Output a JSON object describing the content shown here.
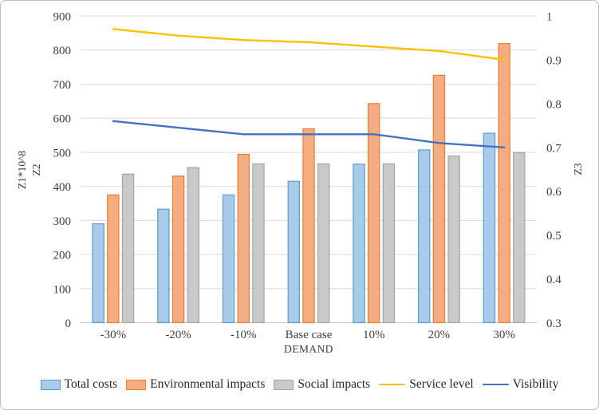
{
  "chart_data": {
    "type": "bar-line-combo",
    "categories": [
      "-30%",
      "-20%",
      "-10%",
      "Base case",
      "10%",
      "20%",
      "30%"
    ],
    "bar_series": [
      {
        "name": "Total costs",
        "values": [
          290,
          333,
          375,
          415,
          465,
          507,
          556
        ],
        "fill": "#A8CBE9",
        "border": "#5B9BD5"
      },
      {
        "name": "Environmental impacts",
        "values": [
          375,
          430,
          494,
          569,
          643,
          726,
          819
        ],
        "fill": "#F4AC81",
        "border": "#ED7D31"
      },
      {
        "name": "Social impacts",
        "values": [
          436,
          455,
          466,
          466,
          466,
          489,
          499
        ],
        "fill": "#C9C9C9",
        "border": "#A5A5A5"
      }
    ],
    "line_series": [
      {
        "name": "Service level",
        "values": [
          0.97,
          0.955,
          0.945,
          0.94,
          0.93,
          0.92,
          0.9
        ],
        "color": "#FFC000",
        "axis": "right"
      },
      {
        "name": "Visibility",
        "values": [
          0.76,
          0.745,
          0.73,
          0.73,
          0.73,
          0.71,
          0.7
        ],
        "color": "#4472C4",
        "axis": "right"
      }
    ],
    "left_axis": {
      "title_lines": [
        "Z1*10^8",
        "Z2"
      ],
      "min": 0,
      "max": 900,
      "step": 100,
      "ticks": [
        "900",
        "800",
        "700",
        "600",
        "500",
        "400",
        "300",
        "200",
        "100",
        "0"
      ]
    },
    "right_axis": {
      "title": "Z3",
      "min": 0.3,
      "max": 1,
      "step": 0.1,
      "ticks": [
        "1",
        "0.9",
        "0.8",
        "0.7",
        "0.6",
        "0.5",
        "0.4",
        "0.3"
      ]
    },
    "x_axis": {
      "title": "DEMAND"
    },
    "grid": true,
    "gridline_color": "#D9D9D9",
    "axis_line_color": "#C6C6C6",
    "legend_position": "bottom"
  }
}
